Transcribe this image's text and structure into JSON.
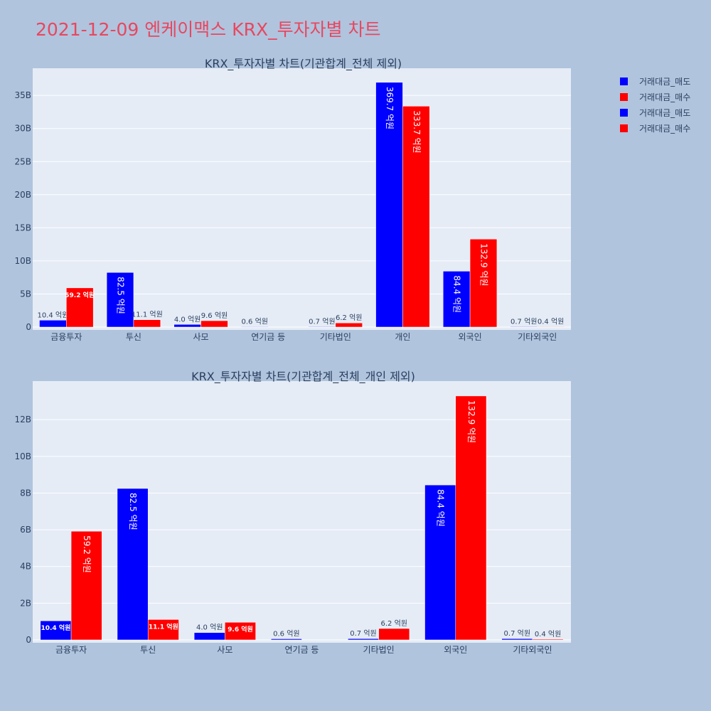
{
  "page_title": "2021-12-09 엔케이맥스 KRX_투자자별 차트",
  "legend": [
    {
      "label": "거래대금_매도",
      "color": "#0000ff"
    },
    {
      "label": "거래대금_매수",
      "color": "#ff0000"
    },
    {
      "label": "거래대금_매도",
      "color": "#0000ff"
    },
    {
      "label": "거래대금_매수",
      "color": "#ff0000"
    }
  ],
  "chart_data": [
    {
      "type": "bar",
      "title": "KRX_투자자별 차트(기관합계_전체 제외)",
      "categories": [
        "금융투자",
        "투신",
        "사모",
        "연기금 등",
        "기타법인",
        "개인",
        "외국인",
        "기타외국인"
      ],
      "series": [
        {
          "name": "거래대금_매도",
          "color": "#0000ff",
          "values": [
            1040000000,
            8250000000,
            400000000,
            60000000,
            70000000,
            36970000000,
            8440000000,
            70000000
          ],
          "labels": [
            "10.4 억원",
            "82.5 억원",
            "4.0 억원",
            "0.6 억원",
            "0.7 억원",
            "369.7 억원",
            "84.4 억원",
            "0.7 억원"
          ]
        },
        {
          "name": "거래대금_매수",
          "color": "#ff0000",
          "values": [
            5920000000,
            1110000000,
            960000000,
            0,
            620000000,
            33370000000,
            13290000000,
            40000000
          ],
          "labels": [
            "59.2 억원",
            "11.1 억원",
            "9.6 억원",
            "",
            "6.2 억원",
            "333.7 억원",
            "132.9 억원",
            "0.4 억원"
          ]
        }
      ],
      "yticks": [
        0,
        5000000000,
        10000000000,
        15000000000,
        20000000000,
        25000000000,
        30000000000,
        35000000000
      ],
      "ytick_labels": [
        "0",
        "5B",
        "10B",
        "15B",
        "20B",
        "25B",
        "30B",
        "35B"
      ],
      "ylim": [
        0,
        39100000000
      ],
      "grid": true
    },
    {
      "type": "bar",
      "title": "KRX_투자자별 차트(기관합계_전체_개인 제외)",
      "categories": [
        "금융투자",
        "투신",
        "사모",
        "연기금 등",
        "기타법인",
        "외국인",
        "기타외국인"
      ],
      "series": [
        {
          "name": "거래대금_매도",
          "color": "#0000ff",
          "values": [
            1040000000,
            8250000000,
            400000000,
            60000000,
            70000000,
            8440000000,
            70000000
          ],
          "labels": [
            "10.4 억원",
            "82.5 억원",
            "4.0 억원",
            "0.6 억원",
            "0.7 억원",
            "84.4 억원",
            "0.7 억원"
          ]
        },
        {
          "name": "거래대금_매수",
          "color": "#ff0000",
          "values": [
            5920000000,
            1110000000,
            960000000,
            0,
            620000000,
            13290000000,
            40000000
          ],
          "labels": [
            "59.2 억원",
            "11.1 억원",
            "9.6 억원",
            "",
            "6.2 억원",
            "132.9 억원",
            "0.4 억원"
          ]
        }
      ],
      "yticks": [
        0,
        2000000000,
        4000000000,
        6000000000,
        8000000000,
        10000000000,
        12000000000
      ],
      "ytick_labels": [
        "0",
        "2B",
        "4B",
        "6B",
        "8B",
        "10B",
        "12B"
      ],
      "ylim": [
        0,
        14100000000
      ],
      "grid": true
    }
  ]
}
